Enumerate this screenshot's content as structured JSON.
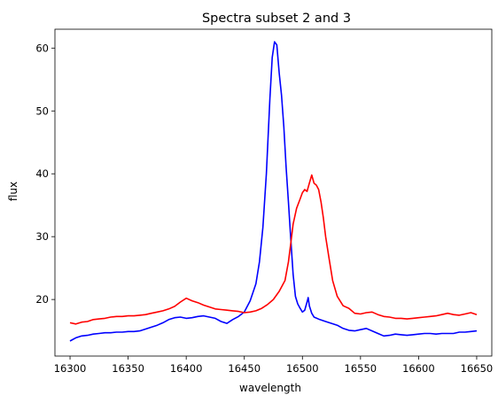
{
  "chart_data": {
    "type": "line",
    "title": "Spectra subset 2 and 3",
    "xlabel": "wavelength",
    "ylabel": "flux",
    "xlim": [
      16287,
      16663
    ],
    "ylim": [
      11,
      63
    ],
    "xticks": [
      16300,
      16350,
      16400,
      16450,
      16500,
      16550,
      16600,
      16650
    ],
    "yticks": [
      20,
      30,
      40,
      50,
      60
    ],
    "grid": false,
    "series": [
      {
        "color": "#0000ff",
        "x": [
          16300,
          16305,
          16310,
          16315,
          16320,
          16325,
          16330,
          16335,
          16340,
          16345,
          16350,
          16355,
          16360,
          16365,
          16370,
          16375,
          16380,
          16385,
          16390,
          16395,
          16400,
          16405,
          16410,
          16415,
          16420,
          16425,
          16430,
          16435,
          16440,
          16445,
          16450,
          16455,
          16460,
          16463,
          16466,
          16469,
          16472,
          16474,
          16476,
          16478,
          16480,
          16482,
          16484,
          16486,
          16488,
          16490,
          16492,
          16494,
          16496,
          16498,
          16500,
          16502,
          16504,
          16505,
          16506,
          16508,
          16510,
          16515,
          16520,
          16525,
          16530,
          16535,
          16540,
          16545,
          16550,
          16555,
          16560,
          16565,
          16570,
          16575,
          16580,
          16585,
          16590,
          16595,
          16600,
          16605,
          16610,
          16615,
          16620,
          16625,
          16630,
          16635,
          16640,
          16645,
          16650
        ],
        "y": [
          13.4,
          13.9,
          14.2,
          14.3,
          14.5,
          14.6,
          14.7,
          14.7,
          14.8,
          14.8,
          14.9,
          14.9,
          15.0,
          15.3,
          15.6,
          15.9,
          16.3,
          16.8,
          17.1,
          17.2,
          17.0,
          17.1,
          17.3,
          17.4,
          17.2,
          17.0,
          16.5,
          16.2,
          16.8,
          17.3,
          18.0,
          19.8,
          22.5,
          26.0,
          31.5,
          40.0,
          52.0,
          58.5,
          61.0,
          60.5,
          56.0,
          52.5,
          47.5,
          41.0,
          35.5,
          29.5,
          24.0,
          20.5,
          19.3,
          18.6,
          18.0,
          18.3,
          19.6,
          20.3,
          19.0,
          17.8,
          17.2,
          16.8,
          16.5,
          16.2,
          15.9,
          15.4,
          15.1,
          15.0,
          15.2,
          15.4,
          15.0,
          14.6,
          14.2,
          14.3,
          14.5,
          14.4,
          14.3,
          14.4,
          14.5,
          14.6,
          14.6,
          14.5,
          14.6,
          14.6,
          14.6,
          14.8,
          14.8,
          14.9,
          15.0
        ]
      },
      {
        "color": "#ff0000",
        "x": [
          16300,
          16305,
          16310,
          16315,
          16320,
          16325,
          16330,
          16335,
          16340,
          16345,
          16350,
          16355,
          16360,
          16365,
          16370,
          16375,
          16380,
          16385,
          16390,
          16395,
          16400,
          16405,
          16410,
          16415,
          16420,
          16425,
          16430,
          16435,
          16440,
          16445,
          16450,
          16455,
          16460,
          16465,
          16470,
          16475,
          16480,
          16485,
          16488,
          16490,
          16492,
          16495,
          16498,
          16500,
          16502,
          16504,
          16506,
          16508,
          16510,
          16512,
          16514,
          16516,
          16518,
          16520,
          16523,
          16526,
          16530,
          16535,
          16540,
          16545,
          16550,
          16555,
          16560,
          16565,
          16570,
          16575,
          16580,
          16585,
          16590,
          16595,
          16600,
          16605,
          16610,
          16615,
          16620,
          16625,
          16630,
          16635,
          16640,
          16645,
          16650
        ],
        "y": [
          16.3,
          16.1,
          16.4,
          16.5,
          16.8,
          16.9,
          17.0,
          17.2,
          17.3,
          17.3,
          17.4,
          17.4,
          17.5,
          17.6,
          17.8,
          18.0,
          18.2,
          18.5,
          18.9,
          19.6,
          20.2,
          19.8,
          19.5,
          19.1,
          18.8,
          18.5,
          18.4,
          18.3,
          18.2,
          18.1,
          17.9,
          18.0,
          18.2,
          18.6,
          19.2,
          20.0,
          21.3,
          23.0,
          26.0,
          29.0,
          32.0,
          34.5,
          36.0,
          37.0,
          37.5,
          37.2,
          38.5,
          39.8,
          38.5,
          38.2,
          37.5,
          35.5,
          33.0,
          30.0,
          26.5,
          23.0,
          20.5,
          19.0,
          18.6,
          17.8,
          17.7,
          17.9,
          18.0,
          17.6,
          17.3,
          17.2,
          17.0,
          17.0,
          16.9,
          17.0,
          17.1,
          17.2,
          17.3,
          17.4,
          17.6,
          17.8,
          17.6,
          17.5,
          17.7,
          17.9,
          17.6
        ]
      }
    ]
  }
}
